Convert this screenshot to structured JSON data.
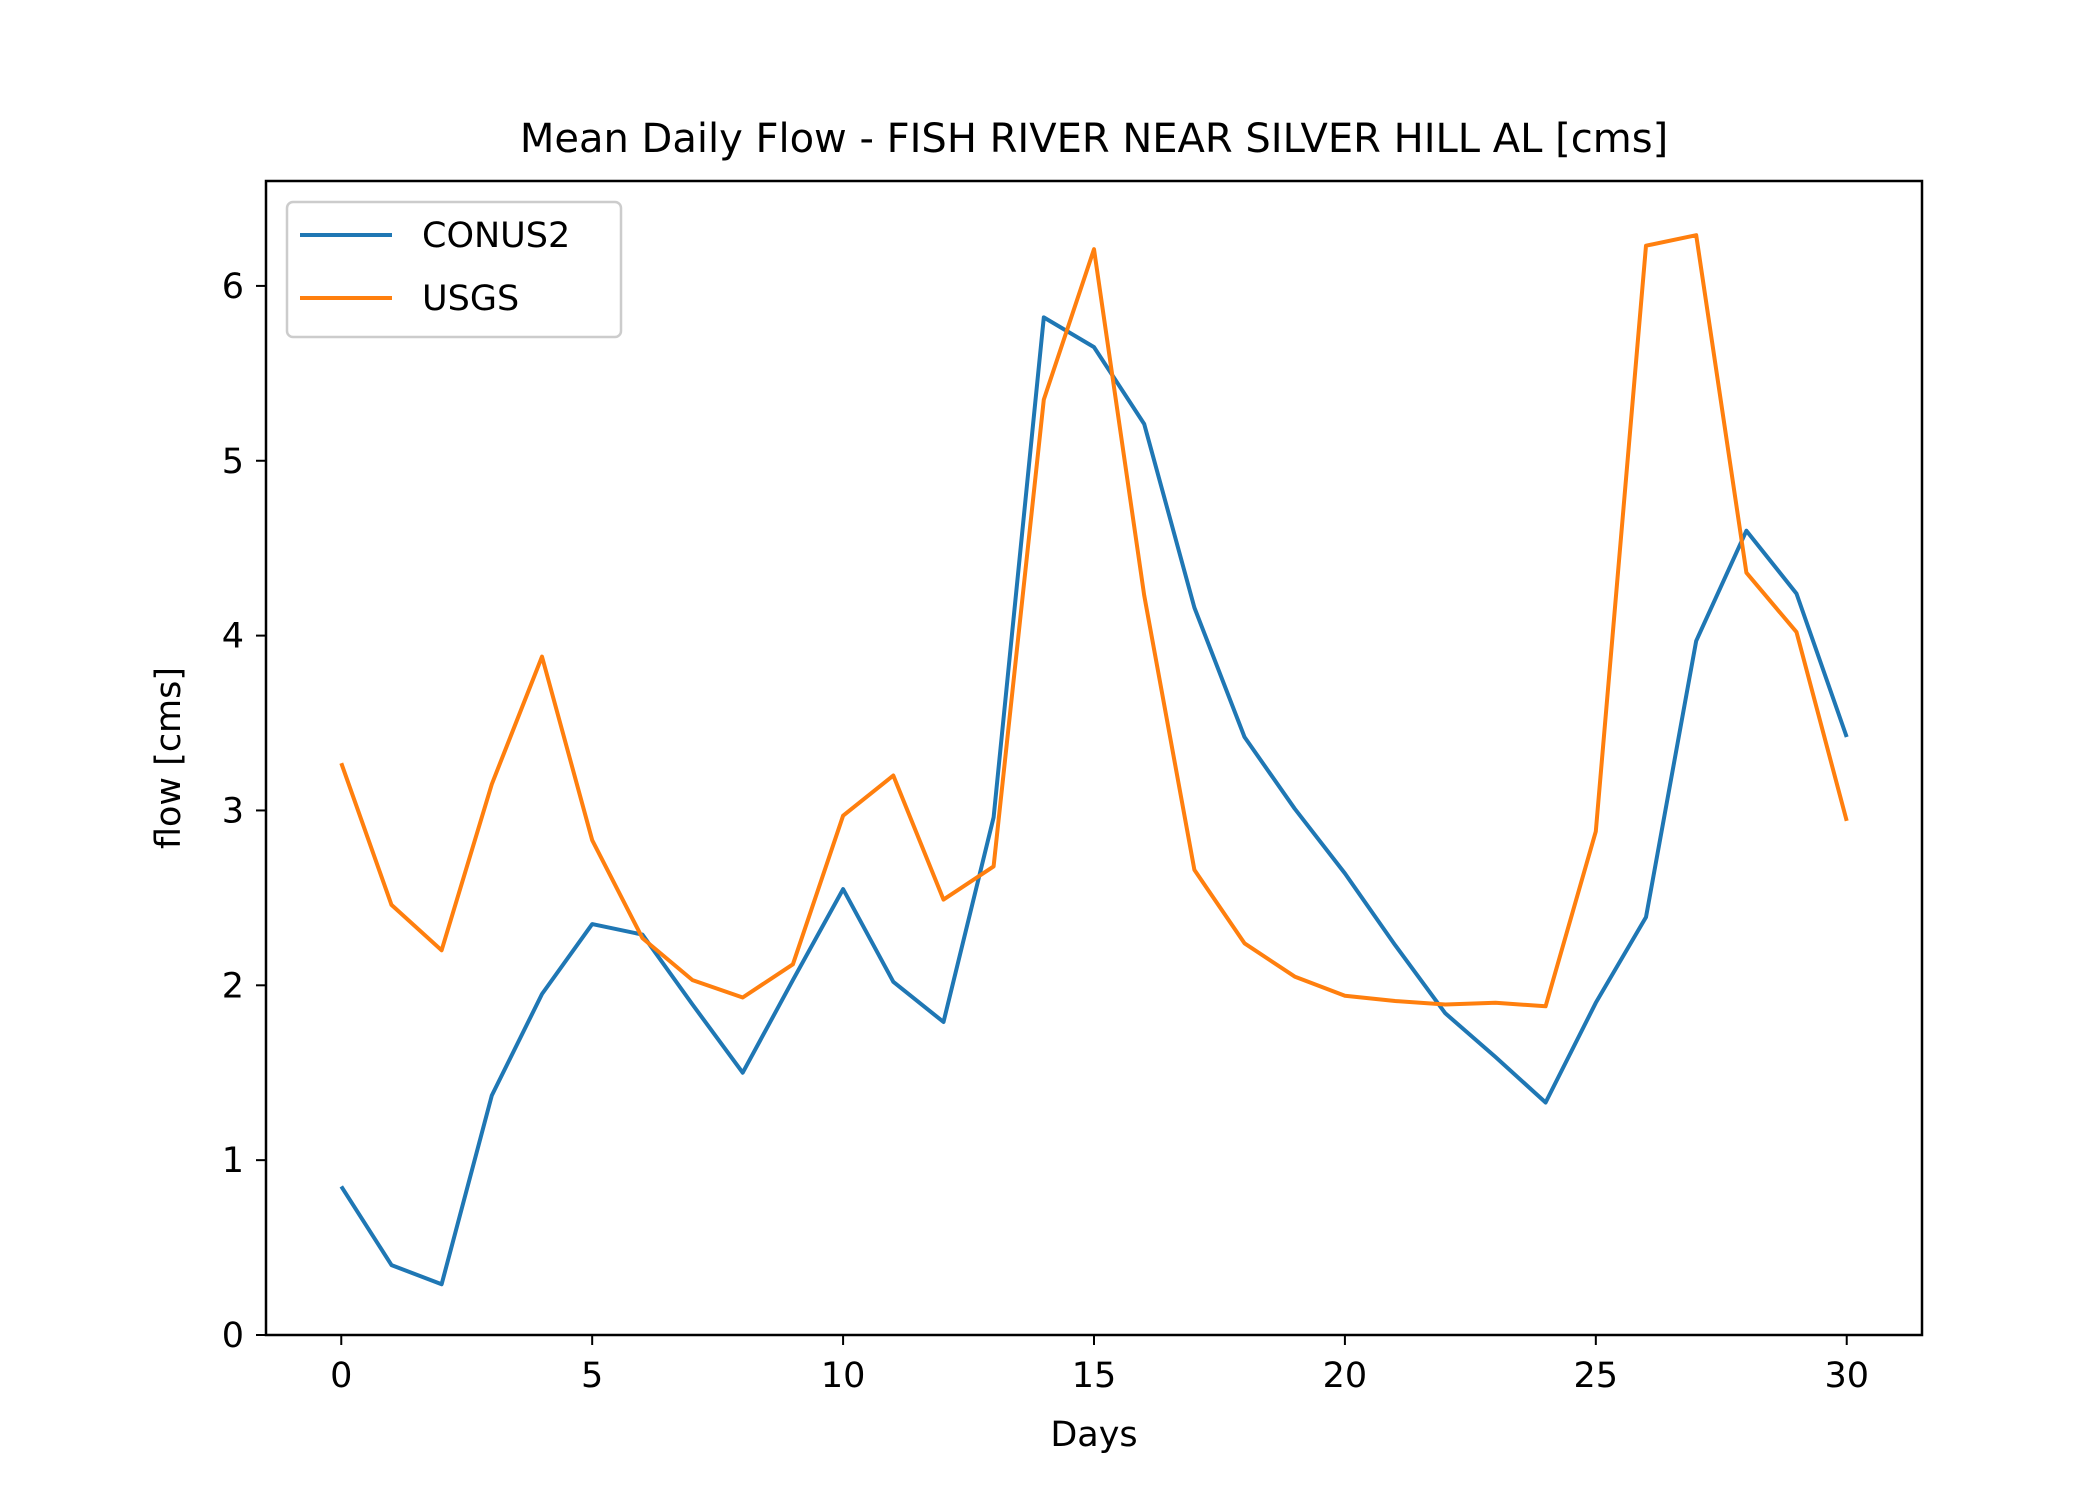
{
  "chart_data": {
    "type": "line",
    "title": "Mean Daily Flow - FISH RIVER NEAR SILVER HILL AL [cms]",
    "xlabel": "Days",
    "ylabel": "flow [cms]",
    "xlim": [
      -1.5,
      31.5
    ],
    "ylim": [
      0,
      6.6
    ],
    "xticks": [
      0,
      5,
      10,
      15,
      20,
      25,
      30
    ],
    "yticks": [
      0,
      1,
      2,
      3,
      4,
      5,
      6
    ],
    "grid": false,
    "legend": "upper left",
    "x": [
      0,
      1,
      2,
      3,
      4,
      5,
      6,
      7,
      8,
      9,
      10,
      11,
      12,
      13,
      14,
      15,
      16,
      17,
      18,
      19,
      20,
      21,
      22,
      23,
      24,
      25,
      26,
      27,
      28,
      29,
      30
    ],
    "series": [
      {
        "name": "CONUS2",
        "color": "#1f77b4",
        "values": [
          0.85,
          0.4,
          0.29,
          1.37,
          1.95,
          2.35,
          2.29,
          1.89,
          1.5,
          2.03,
          2.55,
          2.02,
          1.79,
          2.96,
          5.82,
          5.65,
          5.21,
          4.16,
          3.42,
          3.01,
          2.64,
          2.23,
          1.84,
          1.59,
          1.33,
          1.9,
          2.39,
          3.97,
          4.6,
          4.24,
          3.42
        ]
      },
      {
        "name": "USGS",
        "color": "#ff7f0e",
        "values": [
          3.27,
          2.46,
          2.2,
          3.15,
          3.88,
          2.83,
          2.27,
          2.03,
          1.93,
          2.12,
          2.97,
          3.2,
          2.49,
          2.68,
          5.35,
          6.21,
          4.23,
          2.66,
          2.24,
          2.05,
          1.94,
          1.91,
          1.89,
          1.9,
          1.88,
          2.88,
          6.23,
          6.29,
          4.36,
          4.02,
          2.94
        ]
      }
    ]
  }
}
